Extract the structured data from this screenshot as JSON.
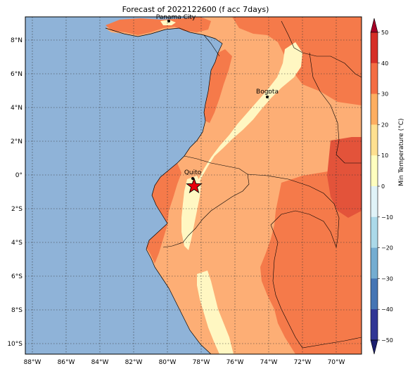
{
  "title": "Forecast of 2022122600 (f acc 7days)",
  "colorbar": {
    "label": "Min Temperature (°C)",
    "ticks": [
      "50",
      "40",
      "30",
      "20",
      "10",
      "0",
      "−10",
      "−20",
      "−30",
      "−40",
      "−50"
    ],
    "levels": [
      50,
      40,
      30,
      20,
      10,
      0,
      -10,
      -20,
      -30,
      -40,
      -50
    ],
    "colors_top_to_bottom": [
      "#a50026",
      "#d62f27",
      "#f46d43",
      "#fdae61",
      "#fee090",
      "#ffffbf",
      "#e0f3f8",
      "#abd9e9",
      "#74add1",
      "#4575b4",
      "#313695",
      "#1b1e6e"
    ]
  },
  "axes": {
    "lon_ticks": [
      "88°W",
      "86°W",
      "84°W",
      "82°W",
      "80°W",
      "78°W",
      "76°W",
      "74°W",
      "72°W",
      "70°W"
    ],
    "lat_ticks": [
      "8°N",
      "6°N",
      "4°N",
      "2°N",
      "0°",
      "2°S",
      "4°S",
      "6°S",
      "8°S",
      "10°S"
    ]
  },
  "cities": [
    {
      "name": "Panama City"
    },
    {
      "name": "Bogota"
    },
    {
      "name": "Quito"
    }
  ],
  "colors": {
    "ocean": "#8fb3d8",
    "temp_0_10": "#fff7c2",
    "temp_10_20": "#fdae75",
    "temp_20_30": "#f57a4a",
    "temp_30_40": "#e3533a",
    "marker": "#e8000b"
  }
}
